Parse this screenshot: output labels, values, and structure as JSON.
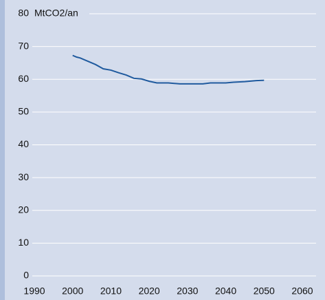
{
  "chart_data": {
    "type": "line",
    "y_label": "MtCO2/an",
    "x": [
      2000,
      2001,
      2002,
      2004,
      2006,
      2008,
      2010,
      2012,
      2014,
      2016,
      2018,
      2020,
      2022,
      2025,
      2028,
      2030,
      2034,
      2036,
      2040,
      2042,
      2045,
      2048,
      2050
    ],
    "series": [
      {
        "name": null,
        "color": "#1f5a9e",
        "values": [
          67.3,
          66.8,
          66.5,
          65.5,
          64.5,
          63.2,
          62.8,
          62.0,
          61.3,
          60.3,
          60.1,
          59.4,
          58.9,
          58.9,
          58.6,
          58.6,
          58.6,
          58.9,
          58.9,
          59.1,
          59.3,
          59.6,
          59.7
        ]
      }
    ],
    "xlim": [
      1990,
      2060
    ],
    "xticks": [
      1990,
      2000,
      2010,
      2020,
      2030,
      2040,
      2050,
      2060
    ],
    "ylim": [
      0,
      80
    ],
    "yticks": [
      0,
      10,
      20,
      30,
      40,
      50,
      60,
      70,
      80
    ],
    "grid": true
  }
}
